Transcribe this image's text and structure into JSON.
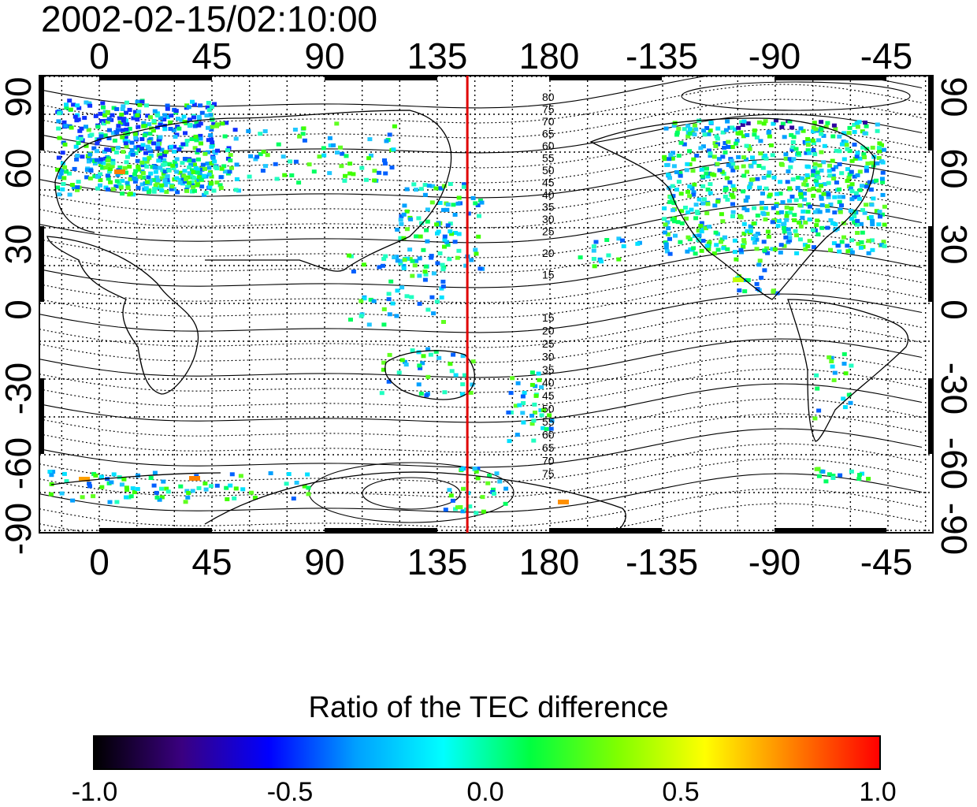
{
  "map": {
    "timestamp": "2002-02-15/02:10:00",
    "top_lon_ticks": [
      "0",
      "45",
      "90",
      "135",
      "180",
      "-135",
      "-90",
      "-45"
    ],
    "bottom_lon_ticks": [
      "0",
      "45",
      "90",
      "135",
      "180",
      "-135",
      "-90",
      "-45"
    ],
    "left_lat_ticks": [
      "90",
      "60",
      "30",
      "0",
      "-30",
      "-60",
      "-90"
    ],
    "right_lat_ticks": [
      "90",
      "60",
      "30",
      "0",
      "-30",
      "-60",
      "-90"
    ],
    "meridian_marker": {
      "longitude": 147,
      "color": "#e00000"
    },
    "contour_labels_north": [
      "80",
      "75",
      "70",
      "65",
      "60",
      "55",
      "50",
      "45",
      "40",
      "35",
      "30",
      "25",
      "20",
      "15"
    ],
    "contour_labels_south": [
      "15",
      "20",
      "25",
      "30",
      "35",
      "40",
      "45",
      "50",
      "55",
      "60",
      "65",
      "70",
      "75"
    ]
  },
  "colorbar": {
    "title": "Ratio of the TEC difference",
    "ticks": [
      "-1.0",
      "-0.5",
      "0.0",
      "0.5",
      "1.0"
    ],
    "range": [
      -1.0,
      1.0
    ],
    "colors": [
      "#000000",
      "#3a0080",
      "#0000ff",
      "#00a0ff",
      "#00ffff",
      "#00ff40",
      "#80ff00",
      "#ffff00",
      "#ff8000",
      "#ff0000"
    ]
  }
}
